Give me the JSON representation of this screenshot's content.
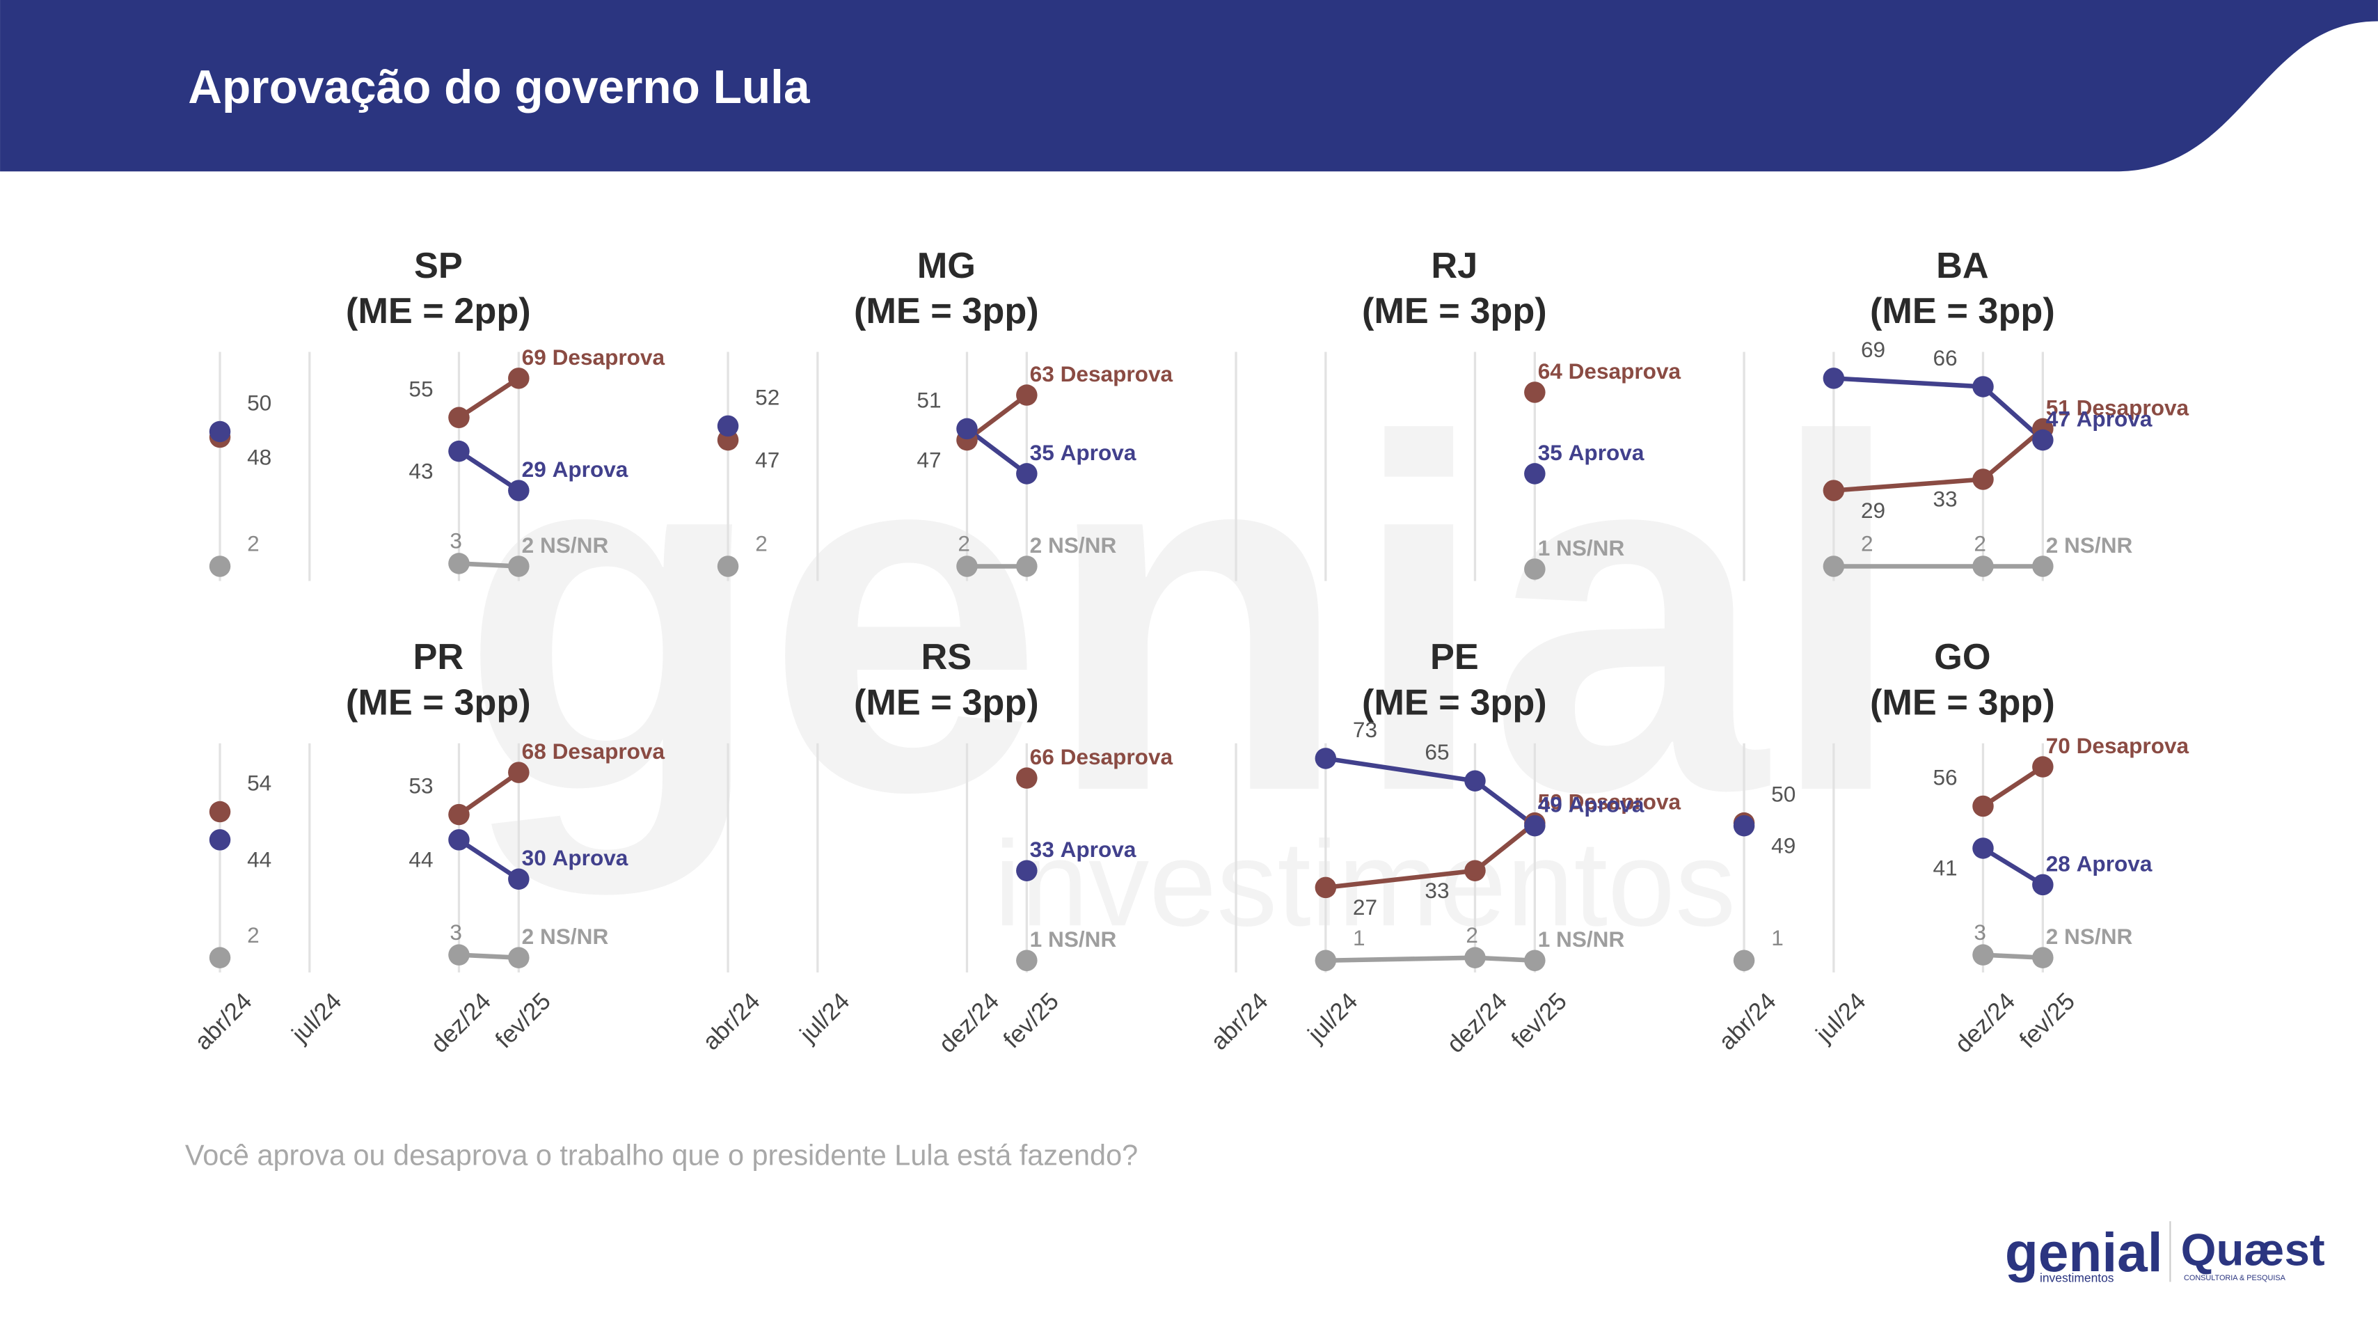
{
  "header": {
    "title": "Aprovação do governo Lula"
  },
  "footnote": "Você aprova ou desaprova o trabalho que o presidente Lula está fazendo?",
  "watermark": {
    "line1": "genial",
    "line2": "investimentos"
  },
  "logos": {
    "genial": "genial",
    "genial_sub": "investimentos",
    "quaest": "Quæst",
    "quaest_sub": "CONSULTORIA & PESQUISA"
  },
  "chart_data": [
    {
      "type": "line",
      "title": "SP",
      "subtitle": "(ME = 2pp)",
      "x": [
        "2024-04",
        "2024-07",
        "2024-12",
        "2025-02"
      ],
      "xticks": [
        {
          "value": "2024-04",
          "label": "abr/24"
        },
        {
          "value": "2024-07",
          "label": "jul/24"
        },
        {
          "value": "2024-12",
          "label": "dez/24"
        },
        {
          "value": "2025-02",
          "label": "fev/25"
        }
      ],
      "xlim": [
        "2024-04",
        "2025-02"
      ],
      "ylim": [
        0,
        80
      ],
      "grid": true,
      "series": [
        {
          "name": "Desaprova",
          "color": "#8a4b43",
          "values": [
            48,
            null,
            55,
            69
          ]
        },
        {
          "name": "Aprova",
          "color": "#41408c",
          "values": [
            50,
            null,
            43,
            29
          ]
        },
        {
          "name": "NS/NR",
          "color": "#9e9e9e",
          "values": [
            2,
            null,
            3,
            2
          ]
        }
      ]
    },
    {
      "type": "line",
      "title": "MG",
      "subtitle": "(ME = 3pp)",
      "x": [
        "2024-04",
        "2024-07",
        "2024-12",
        "2025-02"
      ],
      "xticks": [
        {
          "value": "2024-04",
          "label": "abr/24"
        },
        {
          "value": "2024-07",
          "label": "jul/24"
        },
        {
          "value": "2024-12",
          "label": "dez/24"
        },
        {
          "value": "2025-02",
          "label": "fev/25"
        }
      ],
      "xlim": [
        "2024-04",
        "2025-02"
      ],
      "ylim": [
        0,
        80
      ],
      "grid": true,
      "series": [
        {
          "name": "Desaprova",
          "color": "#8a4b43",
          "values": [
            47,
            null,
            47,
            63
          ]
        },
        {
          "name": "Aprova",
          "color": "#41408c",
          "values": [
            52,
            null,
            51,
            35
          ]
        },
        {
          "name": "NS/NR",
          "color": "#9e9e9e",
          "values": [
            2,
            null,
            2,
            2
          ]
        }
      ]
    },
    {
      "type": "line",
      "title": "RJ",
      "subtitle": "(ME = 3pp)",
      "x": [
        "2024-04",
        "2024-07",
        "2024-12",
        "2025-02"
      ],
      "xticks": [
        {
          "value": "2024-04",
          "label": "abr/24"
        },
        {
          "value": "2024-07",
          "label": "jul/24"
        },
        {
          "value": "2024-12",
          "label": "dez/24"
        },
        {
          "value": "2025-02",
          "label": "fev/25"
        }
      ],
      "xlim": [
        "2024-04",
        "2025-02"
      ],
      "ylim": [
        0,
        80
      ],
      "grid": true,
      "series": [
        {
          "name": "Desaprova",
          "color": "#8a4b43",
          "values": [
            null,
            null,
            null,
            64
          ]
        },
        {
          "name": "Aprova",
          "color": "#41408c",
          "values": [
            null,
            null,
            null,
            35
          ]
        },
        {
          "name": "NS/NR",
          "color": "#9e9e9e",
          "values": [
            null,
            null,
            null,
            1
          ]
        }
      ]
    },
    {
      "type": "line",
      "title": "BA",
      "subtitle": "(ME = 3pp)",
      "x": [
        "2024-04",
        "2024-07",
        "2024-12",
        "2025-02"
      ],
      "xticks": [
        {
          "value": "2024-04",
          "label": "abr/24"
        },
        {
          "value": "2024-07",
          "label": "jul/24"
        },
        {
          "value": "2024-12",
          "label": "dez/24"
        },
        {
          "value": "2025-02",
          "label": "fev/25"
        }
      ],
      "xlim": [
        "2024-04",
        "2025-02"
      ],
      "ylim": [
        0,
        80
      ],
      "grid": true,
      "series": [
        {
          "name": "Desaprova",
          "color": "#8a4b43",
          "values": [
            null,
            29,
            33,
            51
          ]
        },
        {
          "name": "Aprova",
          "color": "#41408c",
          "values": [
            null,
            69,
            66,
            47
          ]
        },
        {
          "name": "NS/NR",
          "color": "#9e9e9e",
          "values": [
            null,
            2,
            2,
            2
          ]
        }
      ]
    },
    {
      "type": "line",
      "title": "PR",
      "subtitle": "(ME = 3pp)",
      "x": [
        "2024-04",
        "2024-07",
        "2024-12",
        "2025-02"
      ],
      "xticks": [
        {
          "value": "2024-04",
          "label": "abr/24"
        },
        {
          "value": "2024-07",
          "label": "jul/24"
        },
        {
          "value": "2024-12",
          "label": "dez/24"
        },
        {
          "value": "2025-02",
          "label": "fev/25"
        }
      ],
      "xlim": [
        "2024-04",
        "2025-02"
      ],
      "ylim": [
        0,
        80
      ],
      "grid": true,
      "series": [
        {
          "name": "Desaprova",
          "color": "#8a4b43",
          "values": [
            54,
            null,
            53,
            68
          ]
        },
        {
          "name": "Aprova",
          "color": "#41408c",
          "values": [
            44,
            null,
            44,
            30
          ]
        },
        {
          "name": "NS/NR",
          "color": "#9e9e9e",
          "values": [
            2,
            null,
            3,
            2
          ]
        }
      ]
    },
    {
      "type": "line",
      "title": "RS",
      "subtitle": "(ME = 3pp)",
      "x": [
        "2024-04",
        "2024-07",
        "2024-12",
        "2025-02"
      ],
      "xticks": [
        {
          "value": "2024-04",
          "label": "abr/24"
        },
        {
          "value": "2024-07",
          "label": "jul/24"
        },
        {
          "value": "2024-12",
          "label": "dez/24"
        },
        {
          "value": "2025-02",
          "label": "fev/25"
        }
      ],
      "xlim": [
        "2024-04",
        "2025-02"
      ],
      "ylim": [
        0,
        80
      ],
      "grid": true,
      "series": [
        {
          "name": "Desaprova",
          "color": "#8a4b43",
          "values": [
            null,
            null,
            null,
            66
          ]
        },
        {
          "name": "Aprova",
          "color": "#41408c",
          "values": [
            null,
            null,
            null,
            33
          ]
        },
        {
          "name": "NS/NR",
          "color": "#9e9e9e",
          "values": [
            null,
            null,
            null,
            1
          ]
        }
      ]
    },
    {
      "type": "line",
      "title": "PE",
      "subtitle": "(ME = 3pp)",
      "x": [
        "2024-04",
        "2024-07",
        "2024-12",
        "2025-02"
      ],
      "xticks": [
        {
          "value": "2024-04",
          "label": "abr/24"
        },
        {
          "value": "2024-07",
          "label": "jul/24"
        },
        {
          "value": "2024-12",
          "label": "dez/24"
        },
        {
          "value": "2025-02",
          "label": "fev/25"
        }
      ],
      "xlim": [
        "2024-04",
        "2025-02"
      ],
      "ylim": [
        0,
        80
      ],
      "grid": true,
      "series": [
        {
          "name": "Desaprova",
          "color": "#8a4b43",
          "values": [
            null,
            27,
            33,
            50
          ]
        },
        {
          "name": "Aprova",
          "color": "#41408c",
          "values": [
            null,
            73,
            65,
            49
          ]
        },
        {
          "name": "NS/NR",
          "color": "#9e9e9e",
          "values": [
            null,
            1,
            2,
            1
          ]
        }
      ]
    },
    {
      "type": "line",
      "title": "GO",
      "subtitle": "(ME = 3pp)",
      "x": [
        "2024-04",
        "2024-07",
        "2024-12",
        "2025-02"
      ],
      "xticks": [
        {
          "value": "2024-04",
          "label": "abr/24"
        },
        {
          "value": "2024-07",
          "label": "jul/24"
        },
        {
          "value": "2024-12",
          "label": "dez/24"
        },
        {
          "value": "2025-02",
          "label": "fev/25"
        }
      ],
      "xlim": [
        "2024-04",
        "2025-02"
      ],
      "ylim": [
        0,
        80
      ],
      "grid": true,
      "series": [
        {
          "name": "Desaprova",
          "color": "#8a4b43",
          "values": [
            50,
            null,
            56,
            70
          ]
        },
        {
          "name": "Aprova",
          "color": "#41408c",
          "values": [
            49,
            null,
            41,
            28
          ]
        },
        {
          "name": "NS/NR",
          "color": "#9e9e9e",
          "values": [
            1,
            null,
            3,
            2
          ]
        }
      ]
    }
  ]
}
